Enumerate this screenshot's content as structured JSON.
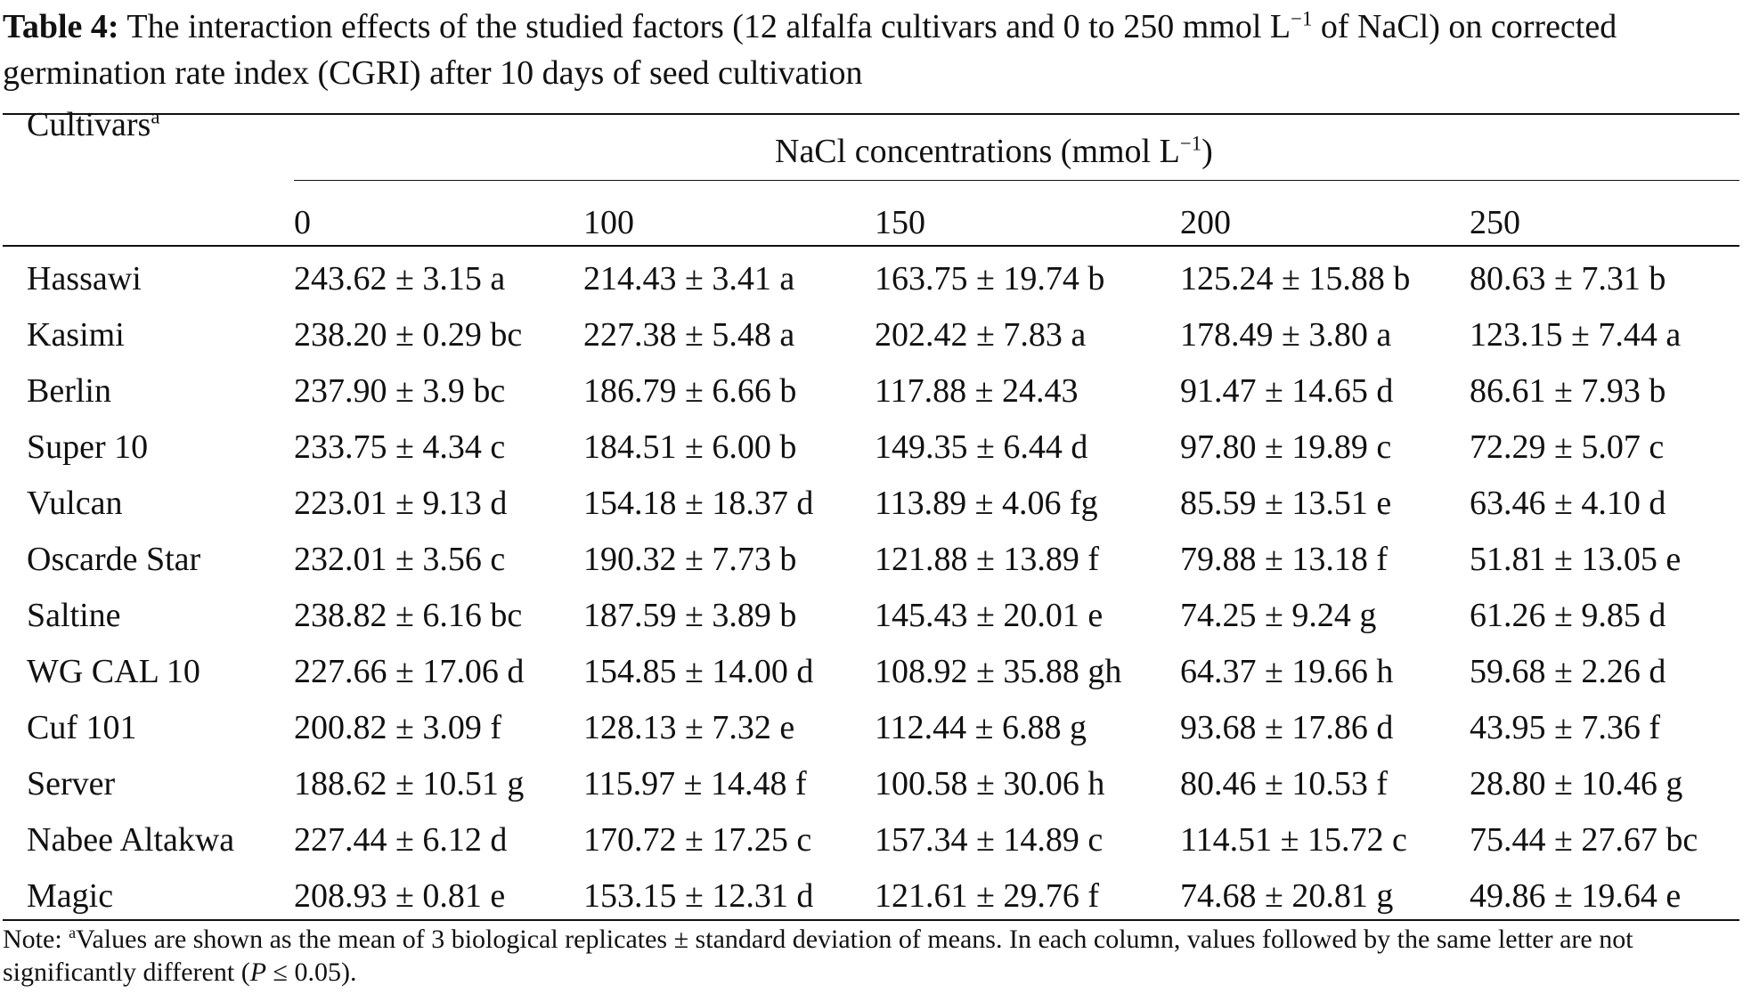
{
  "caption": {
    "label": "Table 4:",
    "text_part1": "The interaction effects of the studied factors (12 alfalfa cultivars and 0 to 250 mmol L",
    "text_sup": "−1",
    "text_part2": " of NaCl) on corrected germination rate index (CGRI) after 10 days of seed cultivation"
  },
  "header": {
    "cultivars_label": "Cultivars",
    "cultivars_sup": "a",
    "span_label": "NaCl concentrations (mmol L",
    "span_sup": "−1",
    "span_close": ")",
    "concentrations": [
      "0",
      "100",
      "150",
      "200",
      "250"
    ]
  },
  "rows": [
    {
      "cultivar": "Hassawi",
      "values": [
        "243.62 ± 3.15 a",
        "214.43 ± 3.41 a",
        "163.75 ± 19.74 b",
        "125.24 ± 15.88 b",
        "80.63 ± 7.31 b"
      ]
    },
    {
      "cultivar": "Kasimi",
      "values": [
        "238.20 ± 0.29 bc",
        "227.38 ± 5.48 a",
        "202.42 ± 7.83 a",
        "178.49 ± 3.80 a",
        "123.15 ± 7.44 a"
      ]
    },
    {
      "cultivar": "Berlin",
      "values": [
        "237.90 ± 3.9 bc",
        "186.79 ± 6.66 b",
        "117.88 ± 24.43",
        "91.47 ± 14.65 d",
        "86.61 ± 7.93 b"
      ]
    },
    {
      "cultivar": "Super 10",
      "values": [
        "233.75 ± 4.34 c",
        "184.51 ± 6.00 b",
        "149.35 ± 6.44 d",
        "97.80 ± 19.89 c",
        "72.29 ± 5.07 c"
      ]
    },
    {
      "cultivar": "Vulcan",
      "values": [
        "223.01 ± 9.13 d",
        "154.18 ± 18.37 d",
        "113.89 ± 4.06 fg",
        "85.59 ± 13.51 e",
        "63.46 ± 4.10 d"
      ]
    },
    {
      "cultivar": "Oscarde Star",
      "values": [
        "232.01 ± 3.56 c",
        "190.32 ± 7.73 b",
        "121.88 ± 13.89 f",
        "79.88 ± 13.18 f",
        "51.81 ± 13.05 e"
      ]
    },
    {
      "cultivar": "Saltine",
      "values": [
        "238.82 ± 6.16 bc",
        "187.59 ± 3.89 b",
        "145.43 ± 20.01 e",
        "74.25 ± 9.24 g",
        "61.26 ± 9.85 d"
      ]
    },
    {
      "cultivar": "WG CAL 10",
      "values": [
        "227.66 ± 17.06 d",
        "154.85 ± 14.00 d",
        "108.92 ± 35.88 gh",
        "64.37 ± 19.66 h",
        "59.68 ± 2.26 d"
      ]
    },
    {
      "cultivar": "Cuf 101",
      "values": [
        "200.82 ± 3.09 f",
        "128.13 ± 7.32 e",
        "112.44 ± 6.88 g",
        "93.68 ± 17.86 d",
        "43.95 ± 7.36 f"
      ]
    },
    {
      "cultivar": "Server",
      "values": [
        "188.62 ± 10.51 g",
        "115.97 ± 14.48 f",
        "100.58 ± 30.06 h",
        "80.46 ± 10.53 f",
        "28.80 ± 10.46 g"
      ]
    },
    {
      "cultivar": "Nabee Altakwa",
      "values": [
        "227.44 ± 6.12 d",
        "170.72 ± 17.25 c",
        "157.34 ± 14.89 c",
        "114.51 ± 15.72 c",
        "75.44 ± 27.67 bc"
      ]
    },
    {
      "cultivar": "Magic",
      "values": [
        "208.93 ± 0.81 e",
        "153.15 ± 12.31 d",
        "121.61 ± 29.76 f",
        "74.68 ± 20.81 g",
        "49.86 ± 19.64 e"
      ]
    }
  ],
  "note": {
    "prefix": "Note: ",
    "sup": "a",
    "text_part1": "Values are shown as the mean of 3 biological replicates ± standard deviation of means. In each column, values followed by the same letter are not significantly different (",
    "italic": "P",
    "text_part2": " ≤ 0.05)."
  }
}
